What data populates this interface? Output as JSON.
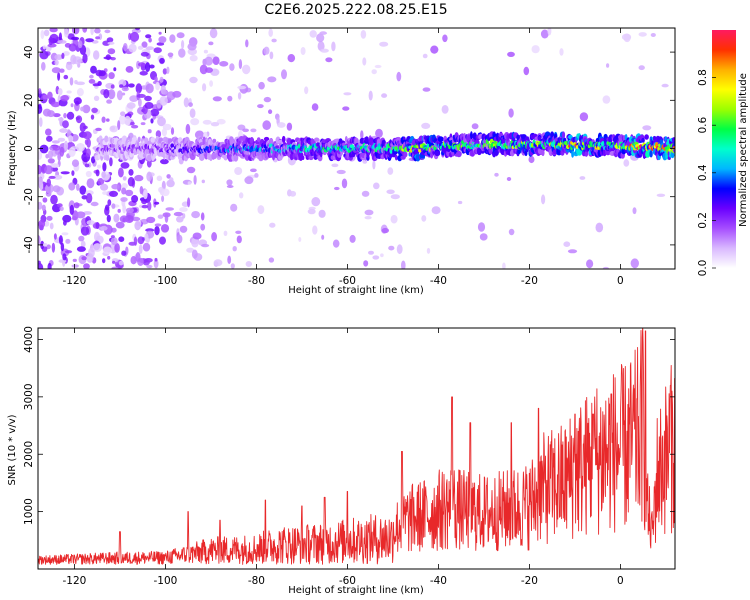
{
  "figure_title": "C2E6.2025.222.08.25.E15",
  "chart_data": [
    {
      "type": "heatmap",
      "title": "C2E6.2025.222.08.25.E15",
      "xlabel": "Height of straight line (km)",
      "ylabel": "Frequency (Hz)",
      "xlim": [
        -128,
        12
      ],
      "ylim": [
        -50,
        50
      ],
      "xticks": [
        -120,
        -100,
        -80,
        -60,
        -40,
        -20,
        0
      ],
      "xtick_labels": [
        "-120",
        "-100",
        "-80",
        "-60",
        "-40",
        "-20",
        "0"
      ],
      "yticks": [
        -40,
        -20,
        0,
        20,
        40
      ],
      "ytick_labels": [
        "-40",
        "-20",
        "0",
        "20",
        "40"
      ],
      "grid": false,
      "colorbar": {
        "label": "Normalized spectral amplitude",
        "range": [
          0,
          1
        ],
        "ticks": [
          0.0,
          0.2,
          0.4,
          0.6,
          0.8
        ],
        "tick_labels": [
          "0.0",
          "0.2",
          "0.4",
          "0.6",
          "0.8"
        ],
        "colors": [
          "#ffffff",
          "#d9b8ff",
          "#a64dff",
          "#6a00ff",
          "#0000ff",
          "#00b7ff",
          "#00ffcc",
          "#00ff44",
          "#9cff00",
          "#ffff00",
          "#ffb000",
          "#ff3000",
          "#ff1a60"
        ]
      },
      "band": [
        {
          "x": -112,
          "f": 0,
          "amp": 0.18
        },
        {
          "x": -100,
          "f": 0,
          "amp": 0.22
        },
        {
          "x": -92,
          "f": 0,
          "amp": 0.3
        },
        {
          "x": -85,
          "f": 0,
          "amp": 0.38
        },
        {
          "x": -75,
          "f": 0,
          "amp": 0.42
        },
        {
          "x": -68,
          "f": 0,
          "amp": 0.5
        },
        {
          "x": -58,
          "f": 0,
          "amp": 0.5
        },
        {
          "x": -50,
          "f": 0,
          "amp": 0.55
        },
        {
          "x": -45,
          "f": 0,
          "amp": 0.72
        },
        {
          "x": -40,
          "f": 1,
          "amp": 0.6
        },
        {
          "x": -30,
          "f": 2,
          "amp": 0.55
        },
        {
          "x": -20,
          "f": 1.5,
          "amp": 0.65
        },
        {
          "x": -15,
          "f": 2,
          "amp": 0.6
        },
        {
          "x": -10,
          "f": 1.5,
          "amp": 0.85
        },
        {
          "x": -2,
          "f": 1,
          "amp": 0.55
        },
        {
          "x": 5,
          "f": 1,
          "amp": 0.9
        },
        {
          "x": 10,
          "f": 0,
          "amp": 0.8
        }
      ]
    },
    {
      "type": "line",
      "xlabel": "Height of straight line (km)",
      "ylabel": "SNR (10 * v/v)",
      "xlim": [
        -128,
        12
      ],
      "ylim": [
        0,
        4200
      ],
      "xticks": [
        -120,
        -100,
        -80,
        -60,
        -40,
        -20,
        0
      ],
      "xtick_labels": [
        "-120",
        "-100",
        "-80",
        "-60",
        "-40",
        "-20",
        "0"
      ],
      "yticks": [
        1000,
        2000,
        3000,
        4000
      ],
      "ytick_labels": [
        "1000",
        "2000",
        "3000",
        "4000"
      ],
      "grid": false,
      "series": [
        {
          "color": "#e8282a",
          "x": [
            -128,
            -120,
            -110,
            -100,
            -95,
            -90,
            -85,
            -80,
            -75,
            -70,
            -65,
            -60,
            -55,
            -50,
            -47,
            -43,
            -40,
            -37,
            -35,
            -30,
            -25,
            -20,
            -18,
            -15,
            -12,
            -10,
            -8,
            -5,
            -3,
            0,
            2,
            4,
            5,
            6,
            7,
            8,
            10,
            12
          ],
          "y": [
            200,
            220,
            250,
            260,
            350,
            450,
            470,
            500,
            600,
            620,
            650,
            700,
            750,
            800,
            1000,
            1100,
            1200,
            1300,
            1200,
            1150,
            1200,
            1300,
            1600,
            1700,
            1800,
            2000,
            2100,
            2300,
            2400,
            2450,
            2550,
            2700,
            3100,
            1200,
            700,
            1900,
            2300,
            2600
          ],
          "peaks": [
            [
              -110,
              650
            ],
            [
              -95,
              1000
            ],
            [
              -88,
              850
            ],
            [
              -78,
              1200
            ],
            [
              -70,
              1100
            ],
            [
              -65,
              1250
            ],
            [
              -60,
              1350
            ],
            [
              -48,
              2050
            ],
            [
              -37,
              3000
            ],
            [
              -33,
              2550
            ],
            [
              -24,
              2550
            ],
            [
              -18,
              2800
            ],
            [
              -10,
              2700
            ],
            [
              -6,
              2700
            ],
            [
              -2,
              3050
            ],
            [
              5.5,
              4150
            ],
            [
              11,
              3200
            ]
          ]
        }
      ]
    }
  ]
}
